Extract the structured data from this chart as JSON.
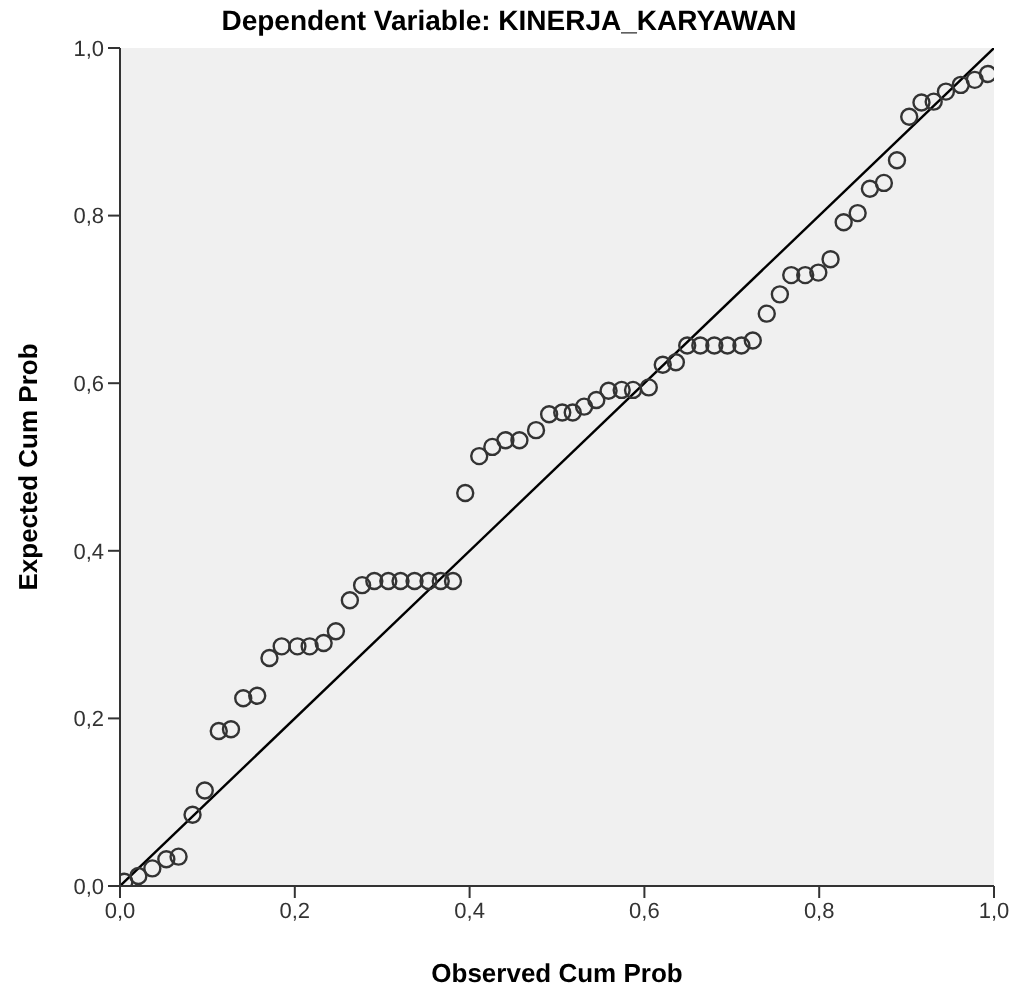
{
  "chart_data": {
    "type": "scatter",
    "title": "Dependent Variable: KINERJA_KARYAWAN",
    "xlabel": "Observed Cum Prob",
    "ylabel": "Expected Cum Prob",
    "xlim": [
      0,
      1
    ],
    "ylim": [
      0,
      1
    ],
    "xticks": [
      {
        "value": 0,
        "label": "0,0"
      },
      {
        "value": 0.2,
        "label": "0,2"
      },
      {
        "value": 0.4,
        "label": "0,4"
      },
      {
        "value": 0.6,
        "label": "0,6"
      },
      {
        "value": 0.8,
        "label": "0,8"
      },
      {
        "value": 1,
        "label": "1,0"
      }
    ],
    "yticks": [
      {
        "value": 0,
        "label": "0,0"
      },
      {
        "value": 0.2,
        "label": "0,2"
      },
      {
        "value": 0.4,
        "label": "0,4"
      },
      {
        "value": 0.6,
        "label": "0,6"
      },
      {
        "value": 0.8,
        "label": "0,8"
      },
      {
        "value": 1,
        "label": "1,0"
      }
    ],
    "grid": false,
    "series": [
      {
        "marker": "circle",
        "color": "#333333",
        "x": [
          0.005,
          0.021,
          0.037,
          0.053,
          0.067,
          0.083,
          0.097,
          0.113,
          0.127,
          0.141,
          0.157,
          0.171,
          0.185,
          0.203,
          0.217,
          0.233,
          0.247,
          0.263,
          0.277,
          0.291,
          0.307,
          0.321,
          0.337,
          0.353,
          0.367,
          0.381,
          0.395,
          0.411,
          0.426,
          0.441,
          0.457,
          0.476,
          0.491,
          0.506,
          0.518,
          0.531,
          0.545,
          0.559,
          0.574,
          0.587,
          0.605,
          0.621,
          0.636,
          0.649,
          0.664,
          0.68,
          0.695,
          0.711,
          0.724,
          0.74,
          0.755,
          0.768,
          0.784,
          0.799,
          0.813,
          0.828,
          0.844,
          0.858,
          0.874,
          0.889,
          0.903,
          0.917,
          0.931,
          0.945,
          0.962,
          0.978,
          0.993
        ],
        "values": [
          0.005,
          0.012,
          0.021,
          0.032,
          0.035,
          0.085,
          0.114,
          0.185,
          0.187,
          0.224,
          0.227,
          0.272,
          0.286,
          0.286,
          0.286,
          0.29,
          0.304,
          0.341,
          0.359,
          0.364,
          0.364,
          0.364,
          0.364,
          0.364,
          0.364,
          0.364,
          0.469,
          0.513,
          0.524,
          0.532,
          0.532,
          0.544,
          0.563,
          0.565,
          0.565,
          0.572,
          0.58,
          0.591,
          0.592,
          0.592,
          0.595,
          0.622,
          0.625,
          0.645,
          0.645,
          0.645,
          0.645,
          0.645,
          0.651,
          0.683,
          0.706,
          0.729,
          0.729,
          0.732,
          0.748,
          0.792,
          0.803,
          0.832,
          0.839,
          0.866,
          0.918,
          0.935,
          0.936,
          0.948,
          0.956,
          0.962,
          0.969
        ]
      },
      {
        "type": "line",
        "color": "#000000",
        "x": [
          0,
          1
        ],
        "values": [
          0,
          1
        ]
      }
    ]
  }
}
